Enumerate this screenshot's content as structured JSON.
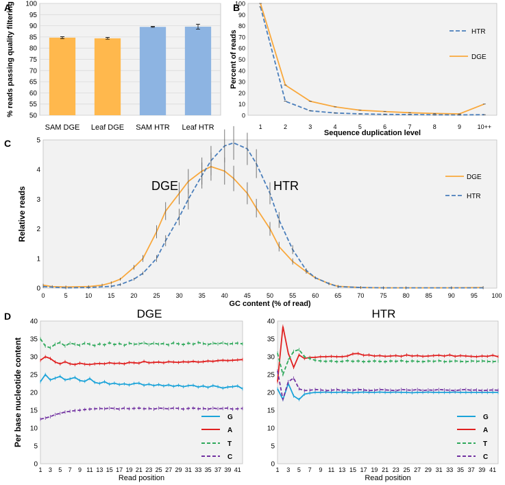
{
  "figure": {
    "panel_labels": [
      "A",
      "B",
      "C",
      "D"
    ]
  },
  "chart_data": [
    {
      "panel": "A",
      "type": "bar",
      "ylabel": "% reads passing quality filtering",
      "ylim": [
        50,
        100
      ],
      "yticks": [
        50,
        55,
        60,
        65,
        70,
        75,
        80,
        85,
        90,
        95,
        100
      ],
      "grid": true,
      "categories": [
        "SAM DGE",
        "Leaf DGE",
        "SAM HTR",
        "Leaf HTR"
      ],
      "values": [
        84.7,
        84.4,
        89.5,
        89.6
      ],
      "errors": [
        0.4,
        0.4,
        0.2,
        1.1
      ],
      "colors": [
        "#ffb84d",
        "#ffb84d",
        "#8db4e2",
        "#8db4e2"
      ]
    },
    {
      "panel": "B",
      "type": "line",
      "xlabel": "Sequence duplication level",
      "ylabel": "Percent of reads",
      "ylim": [
        0,
        100
      ],
      "yticks": [
        0,
        10,
        20,
        30,
        40,
        50,
        60,
        70,
        80,
        90,
        100
      ],
      "categories": [
        "1",
        "2",
        "3",
        "4",
        "5",
        "6",
        "7",
        "8",
        "9",
        "10++"
      ],
      "legend_position": "right",
      "series": [
        {
          "name": "HTR",
          "color": "#4a7ebb",
          "dash": true,
          "values": [
            97,
            12.5,
            4,
            2,
            1.2,
            0.8,
            0.6,
            0.4,
            0.3,
            0.5
          ]
        },
        {
          "name": "DGE",
          "color": "#f9a83c",
          "dash": false,
          "values": [
            100,
            27,
            12.5,
            7.5,
            4.5,
            3.3,
            2.3,
            1.6,
            1.2,
            10
          ]
        }
      ]
    },
    {
      "panel": "C",
      "type": "line",
      "xlabel": "GC content (% of read)",
      "ylabel": "Relative reads",
      "xlim": [
        0,
        100
      ],
      "ylim": [
        0,
        5
      ],
      "xticks": [
        0,
        5,
        10,
        15,
        20,
        25,
        30,
        35,
        40,
        45,
        50,
        55,
        60,
        65,
        70,
        75,
        80,
        85,
        90,
        95,
        100
      ],
      "yticks": [
        0,
        1,
        2,
        3,
        4,
        5
      ],
      "legend_position": "right",
      "annotations": [
        "DGE",
        "HTR"
      ],
      "series": [
        {
          "name": "DGE",
          "color": "#f9a83c",
          "dash": false,
          "x": [
            0,
            2,
            5,
            10,
            13,
            15,
            17,
            20,
            22,
            25,
            27,
            30,
            32,
            35,
            37,
            40,
            42,
            45,
            47,
            50,
            52,
            55,
            58,
            60,
            63,
            65,
            70,
            75,
            80,
            90,
            97
          ],
          "y": [
            0.1,
            0.05,
            0.04,
            0.05,
            0.1,
            0.18,
            0.3,
            0.7,
            1.0,
            1.9,
            2.6,
            3.2,
            3.6,
            3.95,
            4.1,
            3.95,
            3.7,
            3.2,
            2.7,
            2.0,
            1.4,
            0.9,
            0.55,
            0.35,
            0.15,
            0.06,
            0.02,
            0.01,
            0.01,
            0.01,
            0.02
          ]
        },
        {
          "name": "HTR",
          "color": "#4a7ebb",
          "dash": true,
          "x": [
            0,
            5,
            10,
            15,
            17,
            20,
            22,
            25,
            27,
            30,
            32,
            35,
            37,
            40,
            42,
            45,
            47,
            50,
            52,
            55,
            58,
            60,
            63,
            65,
            70,
            75,
            80,
            90,
            97
          ],
          "y": [
            0.05,
            0.01,
            0.02,
            0.06,
            0.12,
            0.3,
            0.5,
            1.0,
            1.6,
            2.4,
            3.0,
            3.8,
            4.3,
            4.8,
            4.9,
            4.7,
            4.2,
            3.2,
            2.3,
            1.3,
            0.6,
            0.35,
            0.15,
            0.05,
            0.02,
            0.01,
            0.01,
            0.01,
            0.01
          ]
        }
      ]
    },
    {
      "panel": "D",
      "title": "DGE",
      "type": "line",
      "xlabel": "Read position",
      "ylabel": "Per base nucleotide content",
      "xlim": [
        1,
        42
      ],
      "ylim": [
        0,
        40
      ],
      "xticks": [
        1,
        3,
        5,
        7,
        9,
        11,
        13,
        15,
        17,
        19,
        21,
        23,
        25,
        27,
        29,
        31,
        33,
        35,
        37,
        39,
        41
      ],
      "yticks": [
        0,
        5,
        10,
        15,
        20,
        25,
        30,
        35,
        40
      ],
      "legend_position": "bottom-right",
      "series": [
        {
          "name": "G",
          "color": "#1aa3d9",
          "dash": false,
          "values": [
            23,
            25,
            23.5,
            24,
            24.5,
            23.5,
            23.8,
            24.2,
            23.3,
            23.1,
            23.9,
            22.8,
            22.5,
            23,
            22.3,
            22.6,
            22.2,
            22.4,
            22.1,
            22.5,
            22.6,
            22.0,
            22.3,
            21.9,
            22.2,
            21.8,
            22.1,
            21.7,
            22.0,
            21.6,
            21.9,
            22.0,
            21.5,
            21.8,
            21.4,
            21.9,
            21.6,
            21.2,
            21.5,
            21.6,
            21.8,
            21.0
          ]
        },
        {
          "name": "A",
          "color": "#e02020",
          "dash": false,
          "values": [
            29,
            30,
            29.5,
            28.5,
            28,
            28.6,
            28,
            27.8,
            28.2,
            27.9,
            27.8,
            28,
            28.1,
            28.0,
            28.3,
            28.1,
            28.2,
            28.0,
            28.4,
            28.3,
            28.2,
            28.7,
            28.3,
            28.4,
            28.5,
            28.3,
            28.6,
            28.5,
            28.4,
            28.6,
            28.5,
            28.7,
            28.5,
            28.6,
            28.8,
            28.7,
            28.9,
            29.0,
            28.9,
            29.0,
            29.1,
            29.2
          ]
        },
        {
          "name": "T",
          "color": "#2ea85a",
          "dash": true,
          "values": [
            35,
            33,
            32.5,
            33.5,
            34,
            33,
            33.8,
            33.5,
            33.2,
            33.8,
            33.5,
            33.1,
            33.6,
            33.3,
            33.9,
            33.4,
            33.7,
            33.2,
            33.8,
            33.5,
            33.6,
            33.9,
            33.4,
            33.8,
            33.5,
            33.7,
            33.3,
            33.9,
            33.6,
            33.4,
            33.8,
            33.5,
            34,
            33.7,
            33.4,
            33.8,
            33.6,
            33.9,
            33.5,
            33.7,
            33.8,
            33.6
          ]
        },
        {
          "name": "C",
          "color": "#7030a0",
          "dash": true,
          "values": [
            12.5,
            12.8,
            13.2,
            13.8,
            14.1,
            14.5,
            14.7,
            14.9,
            15,
            15.2,
            15.3,
            15.4,
            15.5,
            15.4,
            15.6,
            15.5,
            15.3,
            15.6,
            15.4,
            15.5,
            15.6,
            15.4,
            15.5,
            15.3,
            15.6,
            15.5,
            15.4,
            15.6,
            15.5,
            15.3,
            15.5,
            15.6,
            15.4,
            15.5,
            15.3,
            15.6,
            15.4,
            15.5,
            15.6,
            15.3,
            15.4,
            15.5
          ]
        }
      ]
    },
    {
      "panel": "D",
      "title": "HTR",
      "type": "line",
      "xlabel": "Read position",
      "ylabel": "",
      "xlim": [
        1,
        42
      ],
      "ylim": [
        0,
        40
      ],
      "xticks": [
        1,
        3,
        5,
        7,
        9,
        11,
        13,
        15,
        17,
        19,
        21,
        23,
        25,
        27,
        29,
        31,
        33,
        35,
        37,
        39,
        41
      ],
      "yticks": [
        0,
        5,
        10,
        15,
        20,
        25,
        30,
        35,
        40
      ],
      "legend_position": "bottom-right",
      "series": [
        {
          "name": "G",
          "color": "#1aa3d9",
          "dash": false,
          "values": [
            21,
            18,
            22.5,
            19,
            18,
            19.5,
            19.8,
            20,
            20,
            20.1,
            20,
            20,
            20.1,
            20,
            19.9,
            20,
            20.1,
            20,
            20,
            20.1,
            20,
            20,
            20.1,
            20,
            20,
            19.9,
            20,
            20,
            20.1,
            20,
            20,
            20,
            20,
            20.1,
            20,
            20,
            20,
            20,
            20,
            20,
            20,
            20
          ]
        },
        {
          "name": "A",
          "color": "#e02020",
          "dash": false,
          "values": [
            23,
            38.5,
            31,
            27,
            30.5,
            29.5,
            29.8,
            29.8,
            30,
            30,
            30.1,
            30,
            30,
            30.2,
            30.8,
            30.9,
            30.4,
            30.5,
            30.2,
            30.3,
            30.1,
            30.2,
            30.3,
            30.1,
            30.5,
            30.2,
            30.3,
            30.1,
            30.2,
            30.3,
            30.4,
            30.2,
            30.5,
            30.1,
            30.3,
            30.2,
            30.1,
            30,
            30.2,
            30.1,
            30.4,
            30
          ]
        },
        {
          "name": "T",
          "color": "#2ea85a",
          "dash": true,
          "values": [
            31,
            25,
            29,
            31.5,
            32,
            30,
            29.5,
            29,
            28.8,
            28.7,
            28.8,
            28.6,
            28.7,
            28.9,
            28.7,
            28.8,
            28.6,
            28.7,
            28.8,
            28.7,
            28.6,
            28.8,
            28.7,
            28.9,
            28.6,
            28.8,
            28.7,
            28.6,
            28.8,
            28.7,
            28.9,
            28.6,
            28.7,
            28.8,
            28.7,
            28.6,
            28.8,
            28.7,
            28.8,
            28.7,
            28.6,
            28.8
          ]
        },
        {
          "name": "C",
          "color": "#7030a0",
          "dash": true,
          "values": [
            26,
            18,
            23,
            24,
            21,
            20.5,
            20.6,
            20.8,
            20.7,
            20.5,
            20.6,
            20.8,
            20.5,
            20.7,
            20.6,
            20.8,
            20.7,
            20.5,
            20.6,
            20.8,
            20.7,
            20.6,
            20.5,
            20.8,
            20.7,
            20.6,
            20.8,
            20.5,
            20.7,
            20.6,
            20.8,
            20.7,
            20.6,
            20.5,
            20.7,
            20.8,
            20.6,
            20.7,
            20.5,
            20.6,
            20.7,
            20.6
          ]
        }
      ]
    }
  ]
}
